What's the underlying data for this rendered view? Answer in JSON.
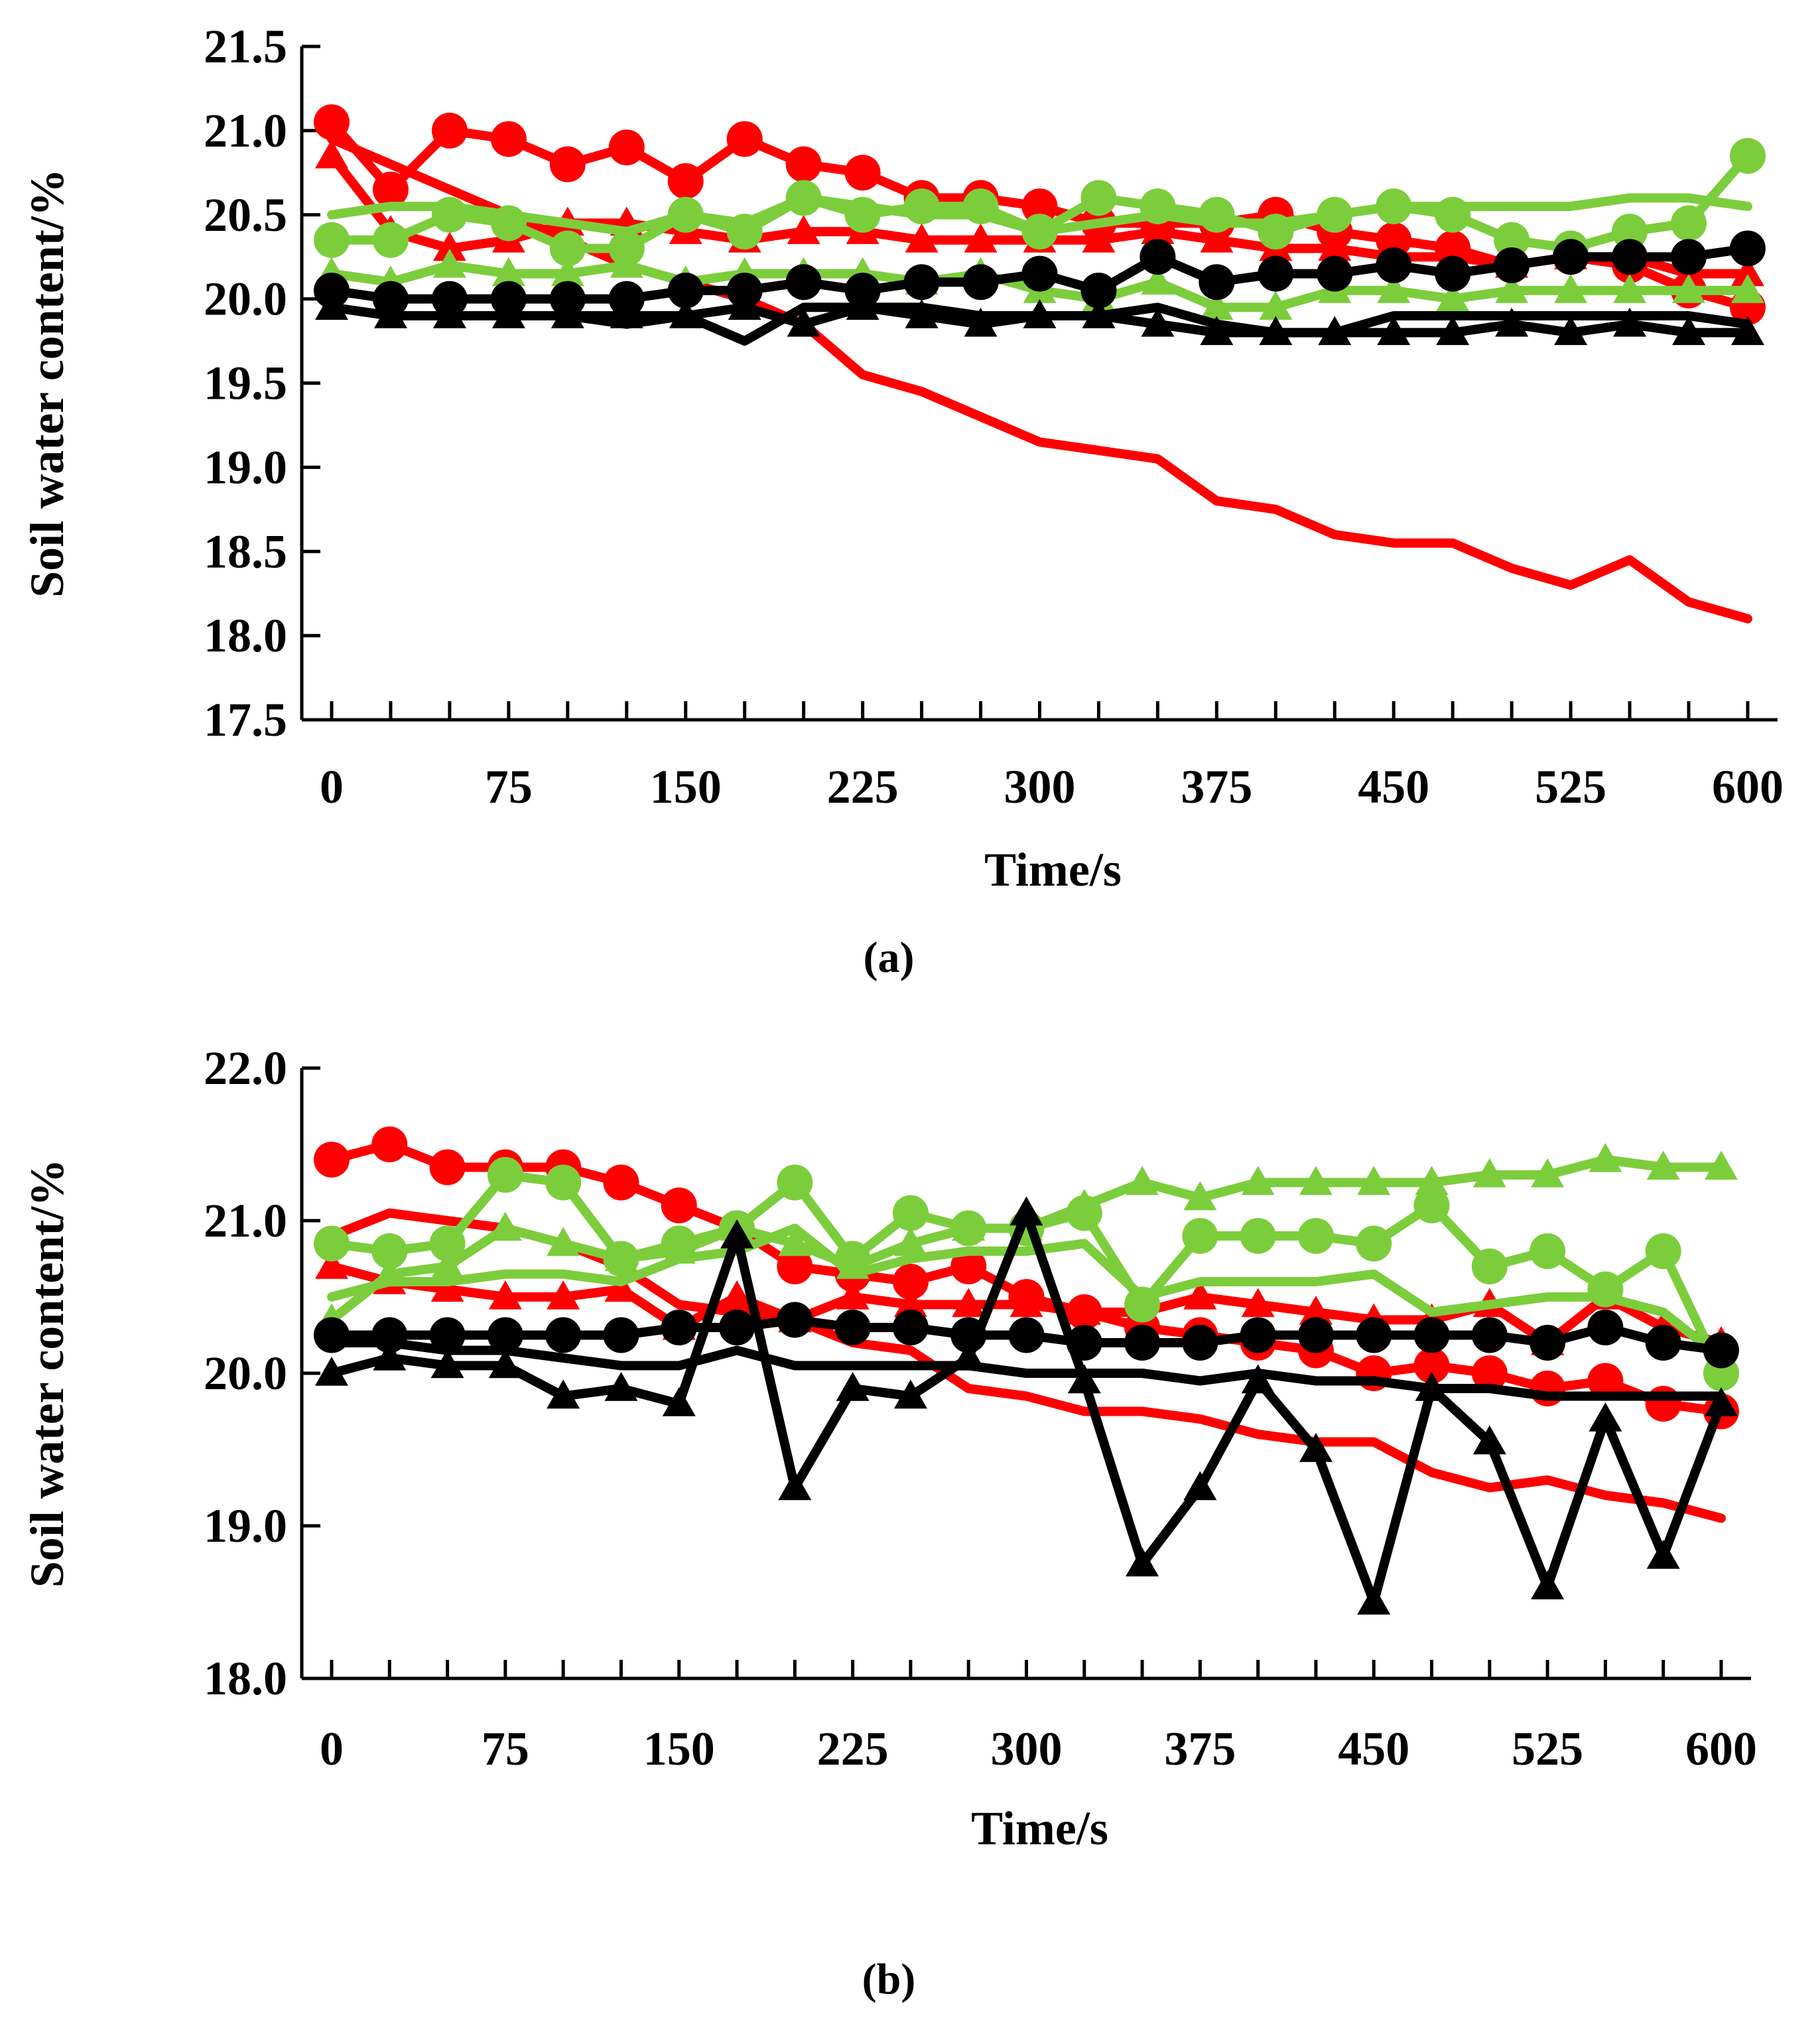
{
  "colors": {
    "red": "#ff0000",
    "green": "#7ccd3c",
    "black": "#000000"
  },
  "chart_data": [
    {
      "type": "line",
      "panel_label": "(a)",
      "xlabel": "Time/s",
      "ylabel": "Soil water content/%",
      "xlim": [
        0,
        600
      ],
      "ylim": [
        17.5,
        21.5
      ],
      "x_ticks": [
        "0",
        "75",
        "150",
        "225",
        "300",
        "375",
        "450",
        "525",
        "600"
      ],
      "y_ticks": [
        "17.5",
        "18.0",
        "18.5",
        "19.0",
        "19.5",
        "20.0",
        "20.5",
        "21.0",
        "21.5"
      ],
      "x": [
        0,
        25,
        50,
        75,
        100,
        125,
        150,
        175,
        200,
        225,
        250,
        275,
        300,
        325,
        350,
        375,
        400,
        425,
        450,
        475,
        500,
        525,
        550,
        575,
        600
      ],
      "series": [
        {
          "name": "red-line",
          "color": "red",
          "marker": "none",
          "values": [
            20.95,
            20.8,
            20.65,
            20.5,
            20.35,
            20.2,
            20.1,
            20.0,
            19.85,
            19.55,
            19.45,
            19.3,
            19.15,
            19.1,
            19.05,
            18.8,
            18.75,
            18.6,
            18.55,
            18.55,
            18.4,
            18.3,
            18.45,
            18.2,
            18.1
          ]
        },
        {
          "name": "red-circle",
          "color": "red",
          "marker": "circle",
          "values": [
            21.05,
            20.65,
            21.0,
            20.95,
            20.8,
            20.9,
            20.7,
            20.95,
            20.8,
            20.75,
            20.6,
            20.6,
            20.55,
            20.45,
            20.45,
            20.45,
            20.5,
            20.4,
            20.35,
            20.3,
            20.2,
            20.25,
            20.2,
            20.05,
            19.95
          ]
        },
        {
          "name": "red-triangle",
          "color": "red",
          "marker": "triangle",
          "values": [
            20.85,
            20.4,
            20.3,
            20.35,
            20.45,
            20.45,
            20.4,
            20.35,
            20.4,
            20.4,
            20.35,
            20.35,
            20.35,
            20.35,
            20.4,
            20.35,
            20.3,
            20.3,
            20.25,
            20.25,
            20.2,
            20.25,
            20.25,
            20.15,
            20.15
          ]
        },
        {
          "name": "green-line",
          "color": "green",
          "marker": "none",
          "values": [
            20.5,
            20.55,
            20.55,
            20.5,
            20.45,
            20.4,
            20.5,
            20.45,
            20.6,
            20.55,
            20.5,
            20.5,
            20.4,
            20.45,
            20.5,
            20.45,
            20.45,
            20.5,
            20.55,
            20.55,
            20.55,
            20.55,
            20.6,
            20.6,
            20.55
          ]
        },
        {
          "name": "green-circle",
          "color": "green",
          "marker": "circle",
          "values": [
            20.35,
            20.35,
            20.5,
            20.45,
            20.3,
            20.3,
            20.5,
            20.4,
            20.6,
            20.5,
            20.55,
            20.55,
            20.4,
            20.6,
            20.55,
            20.5,
            20.4,
            20.5,
            20.55,
            20.5,
            20.35,
            20.3,
            20.4,
            20.45,
            20.85
          ]
        },
        {
          "name": "green-triangle",
          "color": "green",
          "marker": "triangle",
          "values": [
            20.15,
            20.1,
            20.2,
            20.15,
            20.15,
            20.2,
            20.1,
            20.15,
            20.15,
            20.15,
            20.1,
            20.15,
            20.05,
            20.0,
            20.1,
            19.95,
            19.95,
            20.05,
            20.05,
            20.0,
            20.05,
            20.05,
            20.05,
            20.05,
            20.05
          ]
        },
        {
          "name": "black-line",
          "color": "black",
          "marker": "none",
          "values": [
            19.95,
            19.9,
            19.9,
            19.9,
            19.9,
            19.85,
            19.9,
            19.75,
            19.95,
            19.95,
            19.95,
            19.9,
            19.9,
            19.9,
            19.95,
            19.85,
            19.8,
            19.8,
            19.9,
            19.9,
            19.9,
            19.9,
            19.9,
            19.9,
            19.85
          ]
        },
        {
          "name": "black-circle",
          "color": "black",
          "marker": "circle",
          "values": [
            20.05,
            20.0,
            20.0,
            20.0,
            20.0,
            20.0,
            20.05,
            20.05,
            20.1,
            20.05,
            20.1,
            20.1,
            20.15,
            20.05,
            20.25,
            20.1,
            20.15,
            20.15,
            20.2,
            20.15,
            20.2,
            20.25,
            20.25,
            20.25,
            20.3
          ]
        },
        {
          "name": "black-triangle",
          "color": "black",
          "marker": "triangle",
          "values": [
            19.95,
            19.9,
            19.9,
            19.9,
            19.9,
            19.9,
            19.9,
            19.95,
            19.85,
            19.95,
            19.9,
            19.85,
            19.9,
            19.9,
            19.85,
            19.8,
            19.8,
            19.8,
            19.8,
            19.8,
            19.85,
            19.8,
            19.85,
            19.8,
            19.8
          ]
        }
      ]
    },
    {
      "type": "line",
      "panel_label": "(b)",
      "xlabel": "Time/s",
      "ylabel": "Soil water content/%",
      "xlim": [
        0,
        600
      ],
      "ylim": [
        18.0,
        22.0
      ],
      "x_ticks": [
        "0",
        "75",
        "150",
        "225",
        "300",
        "375",
        "450",
        "525",
        "600"
      ],
      "y_ticks": [
        "18.0",
        "19.0",
        "20.0",
        "21.0",
        "22.0"
      ],
      "x": [
        0,
        25,
        50,
        75,
        100,
        125,
        150,
        175,
        200,
        225,
        250,
        275,
        300,
        325,
        350,
        375,
        400,
        425,
        450,
        475,
        500,
        525,
        550,
        575,
        600
      ],
      "series": [
        {
          "name": "red-line",
          "color": "red",
          "marker": "none",
          "values": [
            20.9,
            21.05,
            21.0,
            20.95,
            20.85,
            20.7,
            20.45,
            20.4,
            20.35,
            20.2,
            20.15,
            19.9,
            19.85,
            19.75,
            19.75,
            19.7,
            19.6,
            19.55,
            19.55,
            19.35,
            19.25,
            19.3,
            19.2,
            19.15,
            19.05
          ]
        },
        {
          "name": "red-circle",
          "color": "red",
          "marker": "circle",
          "values": [
            21.4,
            21.5,
            21.35,
            21.35,
            21.35,
            21.25,
            21.1,
            20.95,
            20.7,
            20.65,
            20.6,
            20.7,
            20.5,
            20.4,
            20.3,
            20.25,
            20.2,
            20.15,
            20.0,
            20.05,
            20.0,
            19.9,
            19.95,
            19.8,
            19.75
          ]
        },
        {
          "name": "red-triangle",
          "color": "red",
          "marker": "triangle",
          "values": [
            20.7,
            20.6,
            20.55,
            20.5,
            20.5,
            20.55,
            20.3,
            20.5,
            20.35,
            20.5,
            20.45,
            20.45,
            20.45,
            20.4,
            20.4,
            20.5,
            20.45,
            20.4,
            20.35,
            20.35,
            20.45,
            20.2,
            20.5,
            20.3,
            20.2
          ]
        },
        {
          "name": "green-line",
          "color": "green",
          "marker": "none",
          "values": [
            20.5,
            20.6,
            20.6,
            20.65,
            20.65,
            20.6,
            20.75,
            20.8,
            20.95,
            20.65,
            20.75,
            20.8,
            20.8,
            20.85,
            20.5,
            20.6,
            20.6,
            20.6,
            20.65,
            20.4,
            20.45,
            20.5,
            20.5,
            20.4,
            20.1
          ]
        },
        {
          "name": "green-circle",
          "color": "green",
          "marker": "circle",
          "values": [
            20.85,
            20.8,
            20.85,
            21.3,
            21.25,
            20.75,
            20.85,
            20.95,
            21.25,
            20.75,
            21.05,
            20.95,
            20.95,
            21.05,
            20.45,
            20.9,
            20.9,
            20.9,
            20.85,
            21.1,
            20.7,
            20.8,
            20.55,
            20.8,
            20.0
          ]
        },
        {
          "name": "green-triangle",
          "color": "green",
          "marker": "triangle",
          "values": [
            20.35,
            20.65,
            20.7,
            20.95,
            20.85,
            20.75,
            20.8,
            20.95,
            20.85,
            20.7,
            20.85,
            20.95,
            20.95,
            21.1,
            21.25,
            21.15,
            21.25,
            21.25,
            21.25,
            21.25,
            21.3,
            21.3,
            21.4,
            21.35,
            21.35
          ]
        },
        {
          "name": "black-line",
          "color": "black",
          "marker": "none",
          "values": [
            20.2,
            20.2,
            20.15,
            20.15,
            20.1,
            20.05,
            20.05,
            20.15,
            20.05,
            20.05,
            20.05,
            20.05,
            20.0,
            20.0,
            20.0,
            19.95,
            20.0,
            19.95,
            19.95,
            19.9,
            19.9,
            19.85,
            19.85,
            19.85,
            19.85
          ]
        },
        {
          "name": "black-circle",
          "color": "black",
          "marker": "circle",
          "values": [
            20.25,
            20.25,
            20.25,
            20.25,
            20.25,
            20.25,
            20.3,
            20.3,
            20.35,
            20.3,
            20.3,
            20.25,
            20.25,
            20.2,
            20.2,
            20.2,
            20.25,
            20.25,
            20.25,
            20.25,
            20.25,
            20.2,
            20.3,
            20.2,
            20.15
          ]
        },
        {
          "name": "black-triangle",
          "color": "black",
          "marker": "triangle",
          "values": [
            20.0,
            20.1,
            20.05,
            20.05,
            19.85,
            19.9,
            19.8,
            20.9,
            19.25,
            19.9,
            19.85,
            20.1,
            21.05,
            19.95,
            18.75,
            19.25,
            19.95,
            19.5,
            18.5,
            19.9,
            19.55,
            18.6,
            19.7,
            18.8,
            19.8
          ]
        }
      ]
    }
  ]
}
